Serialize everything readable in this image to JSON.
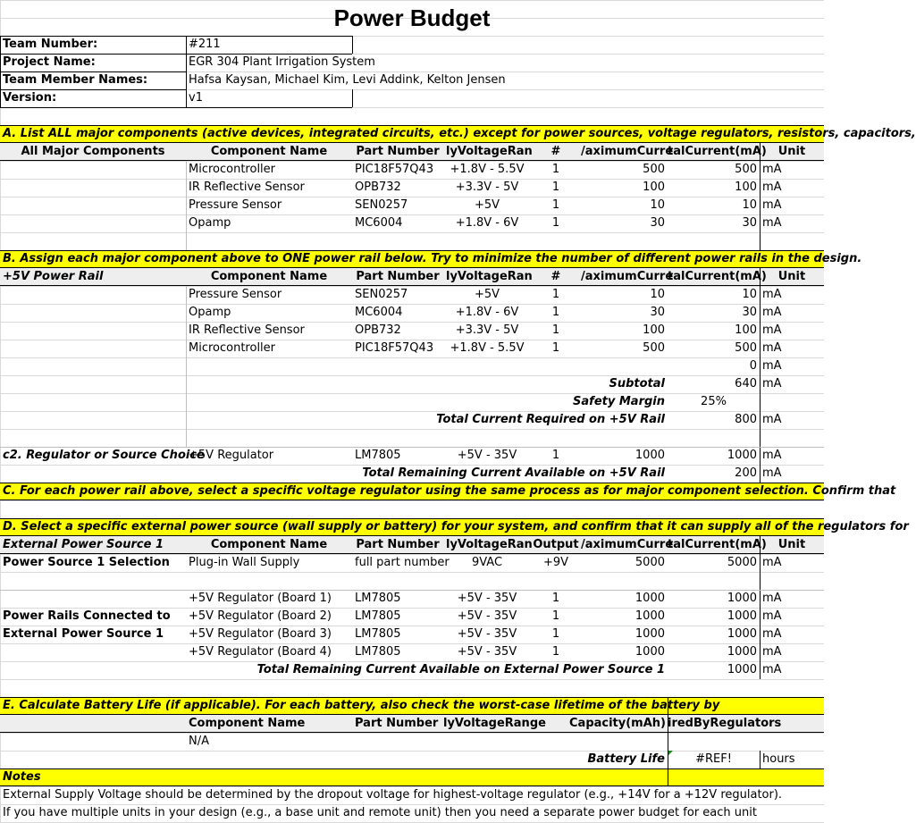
{
  "title": "Power Budget",
  "info": {
    "team_number_label": "Team Number:",
    "team_number": "#211",
    "project_label": "Project Name:",
    "project": "EGR 304 Plant Irrigation System",
    "members_label": "Team Member Names:",
    "members": "Hafsa Kaysan, Michael Kim, Levi Addink, Kelton Jensen",
    "version_label": "Version:",
    "version": "v1"
  },
  "sectionA": {
    "banner": "A. List ALL major components (active devices, integrated circuits, etc.) except for power sources, voltage regulators, resistors, capacitors,",
    "header": {
      "group": "All Major Components",
      "name": "Component Name",
      "part": "Part Number",
      "voltage": "lyVoltageRan",
      "qty": "#",
      "max": "/aximumCurre",
      "total": "talCurrent(mA)",
      "unit": "Unit"
    },
    "rows": [
      {
        "name": "Microcontroller",
        "part": "PIC18F57Q43",
        "voltage": "+1.8V - 5.5V",
        "qty": "1",
        "max": "500",
        "total": "500",
        "unit": "mA"
      },
      {
        "name": "IR Reflective Sensor",
        "part": "OPB732",
        "voltage": "+3.3V - 5V",
        "qty": "1",
        "max": "100",
        "total": "100",
        "unit": "mA"
      },
      {
        "name": "Pressure Sensor",
        "part": "SEN0257",
        "voltage": "+5V",
        "qty": "1",
        "max": "10",
        "total": "10",
        "unit": "mA"
      },
      {
        "name": "Opamp",
        "part": "MC6004",
        "voltage": "+1.8V - 6V",
        "qty": "1",
        "max": "30",
        "total": "30",
        "unit": "mA"
      }
    ]
  },
  "sectionB": {
    "banner": "B. Assign each major component above to ONE power rail below. Try to minimize the number of different power rails in the design.",
    "header": {
      "group": "+5V Power Rail",
      "name": "Component Name",
      "part": "Part Number",
      "voltage": "lyVoltageRan",
      "qty": "#",
      "max": "/aximumCurre",
      "total": "talCurrent(mA)",
      "unit": "Unit"
    },
    "rows": [
      {
        "name": "Pressure Sensor",
        "part": "SEN0257",
        "voltage": "+5V",
        "qty": "1",
        "max": "10",
        "total": "10",
        "unit": "mA"
      },
      {
        "name": "Opamp",
        "part": "MC6004",
        "voltage": "+1.8V - 6V",
        "qty": "1",
        "max": "30",
        "total": "30",
        "unit": "mA"
      },
      {
        "name": "IR Reflective Sensor",
        "part": "OPB732",
        "voltage": "+3.3V - 5V",
        "qty": "1",
        "max": "100",
        "total": "100",
        "unit": "mA"
      },
      {
        "name": "Microcontroller",
        "part": "PIC18F57Q43",
        "voltage": "+1.8V - 5.5V",
        "qty": "1",
        "max": "500",
        "total": "500",
        "unit": "mA"
      }
    ],
    "empty_total": "0",
    "empty_unit": "mA",
    "subtotal_label": "Subtotal",
    "subtotal": "640",
    "subtotal_unit": "mA",
    "margin_label": "Safety Margin",
    "margin": "25%",
    "required_label": "Total Current Required on +5V Rail",
    "required": "800",
    "required_unit": "mA",
    "reg_label": "c2. Regulator or Source Choice",
    "reg_name": "+5V Regulator",
    "reg_part": "LM7805",
    "reg_voltage": "+5V - 35V",
    "reg_qty": "1",
    "reg_max": "1000",
    "reg_total": "1000",
    "reg_unit": "mA",
    "remaining_label": "Total Remaining Current Available on +5V Rail",
    "remaining": "200",
    "remaining_unit": "mA"
  },
  "sectionC": {
    "banner": "C. For each power rail above, select a specific voltage regulator using the same process as for major component selection. Confirm that"
  },
  "sectionD": {
    "banner": "D. Select a specific external power source (wall supply or battery) for your system, and confirm that it can supply all of the regulators for",
    "header": {
      "group": "External Power Source 1",
      "name": "Component Name",
      "part": "Part Number",
      "voltage": "lyVoltageRan",
      "qty": "Output",
      "max": "/aximumCurre",
      "total": "talCurrent(mA)",
      "unit": "Unit"
    },
    "source_label": "Power Source 1 Selection",
    "source_name": "Plug-in Wall Supply",
    "source_part": "full part number",
    "source_voltage": "9VAC",
    "source_output": "+9V",
    "source_max": "5000",
    "source_total": "5000",
    "source_unit": "mA",
    "rails_label_1": "Power Rails Connected to",
    "rails_label_2": "External Power Source 1",
    "rows": [
      {
        "name": "+5V Regulator (Board 1)",
        "part": "LM7805",
        "voltage": "+5V - 35V",
        "qty": "1",
        "max": "1000",
        "total": "1000",
        "unit": "mA"
      },
      {
        "name": "+5V Regulator (Board 2)",
        "part": "LM7805",
        "voltage": "+5V - 35V",
        "qty": "1",
        "max": "1000",
        "total": "1000",
        "unit": "mA"
      },
      {
        "name": "+5V Regulator (Board 3)",
        "part": "LM7805",
        "voltage": "+5V - 35V",
        "qty": "1",
        "max": "1000",
        "total": "1000",
        "unit": "mA"
      },
      {
        "name": "+5V Regulator (Board 4)",
        "part": "LM7805",
        "voltage": "+5V - 35V",
        "qty": "1",
        "max": "1000",
        "total": "1000",
        "unit": "mA"
      }
    ],
    "remaining_label": "Total Remaining Current Available on External Power Source 1",
    "remaining": "1000",
    "remaining_unit": "mA"
  },
  "sectionE": {
    "banner": "E. Calculate Battery Life (if applicable).  For each battery, also check the worst-case lifetime of the battery by",
    "header": {
      "name": "Component Name",
      "part": "Part Number",
      "voltage": "lyVoltageRange",
      "capacity": "Capacity(mAh)",
      "required": "iredByRegulators"
    },
    "row_name": "N/A",
    "life_label": "Battery Life",
    "life_value": "#REF!",
    "life_unit": "hours"
  },
  "notes": {
    "title": "Notes",
    "line1": "External Supply Voltage should be determined by the dropout voltage for highest-voltage regulator (e.g., +14V for a +12V regulator).",
    "line2": "If you have multiple units in your design (e.g., a base unit and remote unit) then you need a separate power budget for each unit"
  }
}
